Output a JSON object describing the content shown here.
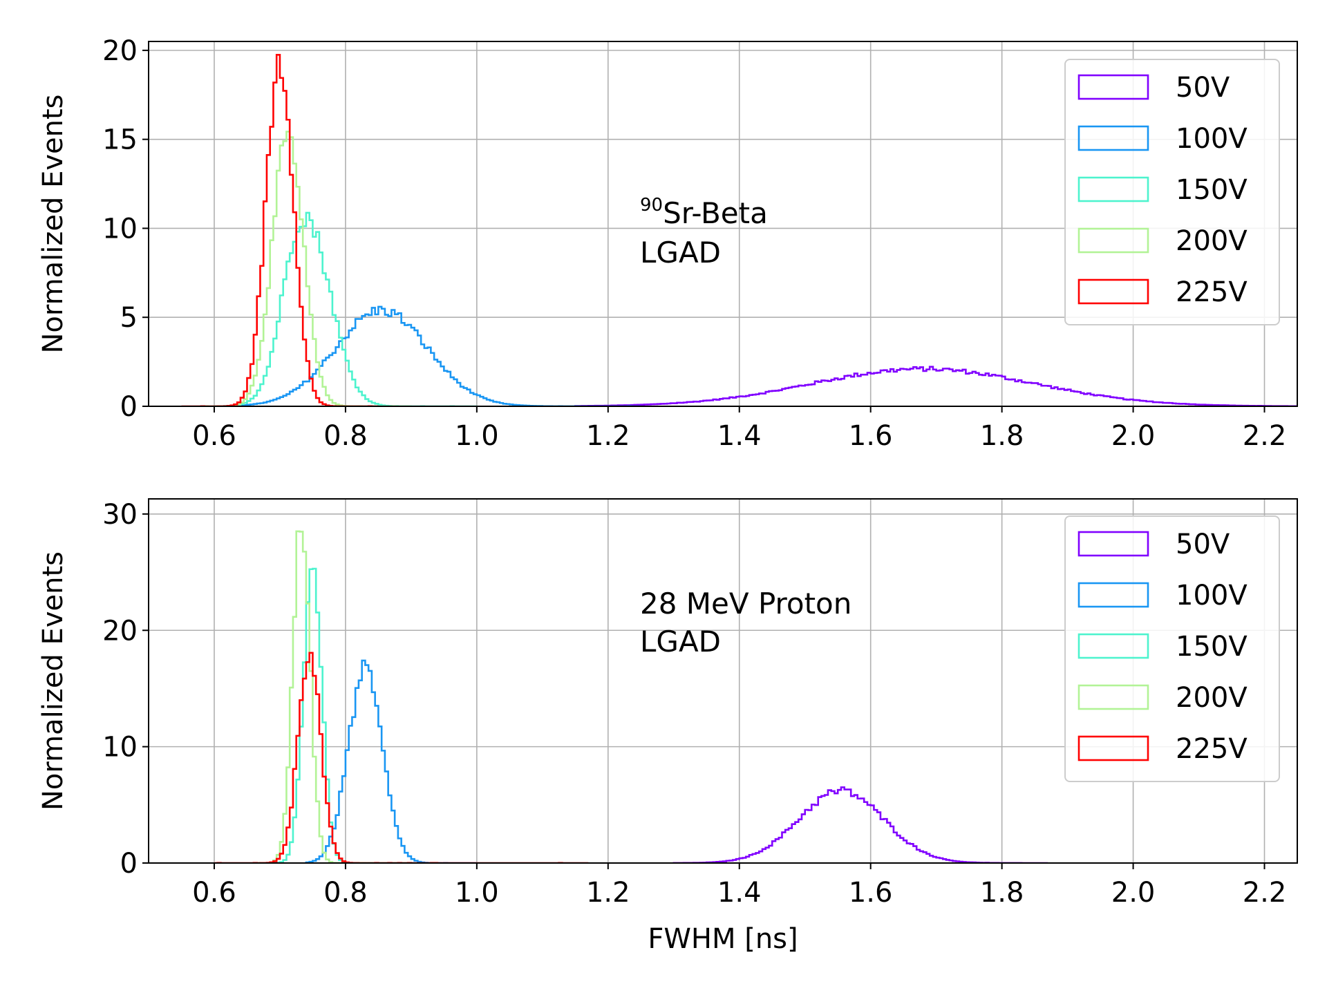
{
  "chart_data": [
    {
      "type": "histogram",
      "xlabel": "",
      "ylabel": "Normalized Events",
      "xlim": [
        0.5,
        2.25
      ],
      "ylim": [
        0,
        20.5
      ],
      "xticks": [
        "0.6",
        "0.8",
        "1.0",
        "1.2",
        "1.4",
        "1.6",
        "1.8",
        "2.0",
        "2.2"
      ],
      "yticks": [
        "0",
        "5",
        "10",
        "15",
        "20"
      ],
      "grid": true,
      "legend_position": "top-right",
      "annotation": {
        "sup": "90",
        "line1": "Sr-Beta",
        "line2": "LGAD"
      },
      "series": [
        {
          "name": "50V",
          "color": "#8000ff",
          "range": [
            1.15,
            2.25
          ],
          "peaks": [
            {
              "mu": 1.68,
              "sigma": 0.17,
              "amp": 2.1
            }
          ]
        },
        {
          "name": "100V",
          "color": "#1996f3",
          "range": [
            0.62,
            1.25
          ],
          "peaks": [
            {
              "mu": 0.855,
              "sigma": 0.07,
              "amp": 5.4
            }
          ]
        },
        {
          "name": "150V",
          "color": "#4df3ce",
          "range": [
            0.6,
            1.0
          ],
          "peaks": [
            {
              "mu": 0.745,
              "sigma": 0.035,
              "amp": 9.6
            },
            {
              "mu": 0.72,
              "sigma": 0.02,
              "amp": 2.0
            }
          ]
        },
        {
          "name": "200V",
          "color": "#b2f396",
          "range": [
            0.58,
            0.9
          ],
          "peaks": [
            {
              "mu": 0.712,
              "sigma": 0.024,
              "amp": 15.0
            }
          ]
        },
        {
          "name": "225V",
          "color": "#ff0000",
          "range": [
            0.55,
            0.85
          ],
          "peaks": [
            {
              "mu": 0.7,
              "sigma": 0.021,
              "amp": 19.5
            }
          ]
        }
      ]
    },
    {
      "type": "histogram",
      "xlabel": "FWHM [ns]",
      "ylabel": "Normalized Events",
      "xlim": [
        0.5,
        2.25
      ],
      "ylim": [
        0,
        31.3
      ],
      "xticks": [
        "0.6",
        "0.8",
        "1.0",
        "1.2",
        "1.4",
        "1.6",
        "1.8",
        "2.0",
        "2.2"
      ],
      "yticks": [
        "0",
        "10",
        "20",
        "30"
      ],
      "grid": true,
      "legend_position": "top-right",
      "annotation": {
        "sup": "",
        "line1": "28 MeV Proton",
        "line2": "LGAD"
      },
      "series": [
        {
          "name": "50V",
          "color": "#8000ff",
          "range": [
            1.3,
            1.87
          ],
          "peaks": [
            {
              "mu": 1.555,
              "sigma": 0.065,
              "amp": 6.2
            }
          ]
        },
        {
          "name": "100V",
          "color": "#1996f3",
          "range": [
            0.74,
            1.0
          ],
          "peaks": [
            {
              "mu": 0.83,
              "sigma": 0.026,
              "amp": 16.5
            }
          ]
        },
        {
          "name": "150V",
          "color": "#4df3ce",
          "range": [
            0.68,
            0.9
          ],
          "peaks": [
            {
              "mu": 0.75,
              "sigma": 0.014,
              "amp": 25.5
            }
          ]
        },
        {
          "name": "200V",
          "color": "#b2f396",
          "range": [
            0.66,
            0.9
          ],
          "peaks": [
            {
              "mu": 0.733,
              "sigma": 0.013,
              "amp": 29.8
            }
          ]
        },
        {
          "name": "225V",
          "color": "#ff0000",
          "range": [
            0.6,
            1.17
          ],
          "peaks": [
            {
              "mu": 0.745,
              "sigma": 0.017,
              "amp": 18.5
            }
          ]
        }
      ]
    }
  ]
}
